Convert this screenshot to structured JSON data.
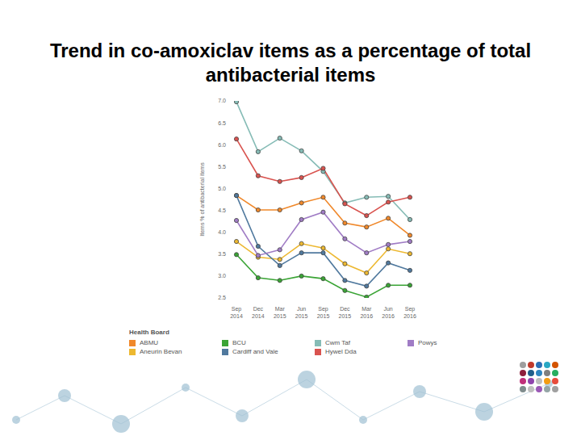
{
  "chart_data": {
    "type": "line",
    "title": "Trend in co-amoxiclav items as a percentage of total antibacterial items",
    "y_label": "Items % of antibacterial items",
    "legend_title": "Health Board",
    "categories": [
      "Sep 2014",
      "Dec 2014",
      "Mar 2015",
      "Jun 2015",
      "Sep 2015",
      "Dec 2015",
      "Mar 2016",
      "Jun 2016",
      "Sep 2016"
    ],
    "series": [
      {
        "name": "ABMU",
        "color": "#f0882a",
        "values": [
          4.84,
          4.51,
          4.51,
          4.67,
          4.8,
          4.21,
          4.12,
          4.32,
          3.93
        ]
      },
      {
        "name": "Aneurin Bevan",
        "color": "#edb830",
        "values": [
          3.79,
          3.43,
          3.38,
          3.74,
          3.64,
          3.28,
          3.07,
          3.62,
          3.51
        ]
      },
      {
        "name": "BCU",
        "color": "#3aa435",
        "values": [
          3.49,
          2.96,
          2.9,
          3.0,
          2.94,
          2.67,
          2.52,
          2.79,
          2.79
        ]
      },
      {
        "name": "Cardiff and Vale",
        "color": "#50799e",
        "values": [
          4.84,
          3.68,
          3.24,
          3.53,
          3.53,
          2.9,
          2.77,
          3.3,
          3.13
        ]
      },
      {
        "name": "Cwm Taf",
        "color": "#86bcb6",
        "values": [
          6.98,
          5.84,
          6.15,
          5.86,
          5.39,
          4.67,
          4.8,
          4.82,
          4.29
        ]
      },
      {
        "name": "Hywel Dda",
        "color": "#d9534f",
        "values": [
          6.13,
          5.29,
          5.16,
          5.25,
          5.46,
          4.65,
          4.38,
          4.69,
          4.8
        ]
      },
      {
        "name": "Powys",
        "color": "#a07cc5",
        "values": [
          4.27,
          3.47,
          3.6,
          4.29,
          4.46,
          3.85,
          3.53,
          3.72,
          3.79
        ]
      }
    ],
    "ylim": [
      2.5,
      7.0
    ],
    "yticks": [
      2.5,
      {
        "value": 3.0,
        "label": "3.0"
      },
      3.5,
      {
        "value": 4.0,
        "label": "4.0"
      },
      4.5,
      {
        "value": 5.0,
        "label": "5.0"
      },
      5.5,
      {
        "value": 6.0,
        "label": "6.0"
      },
      6.5,
      {
        "value": 7.0,
        "label": "7.0"
      }
    ],
    "grid": false,
    "legend": "bottom",
    "marker": "circle"
  }
}
